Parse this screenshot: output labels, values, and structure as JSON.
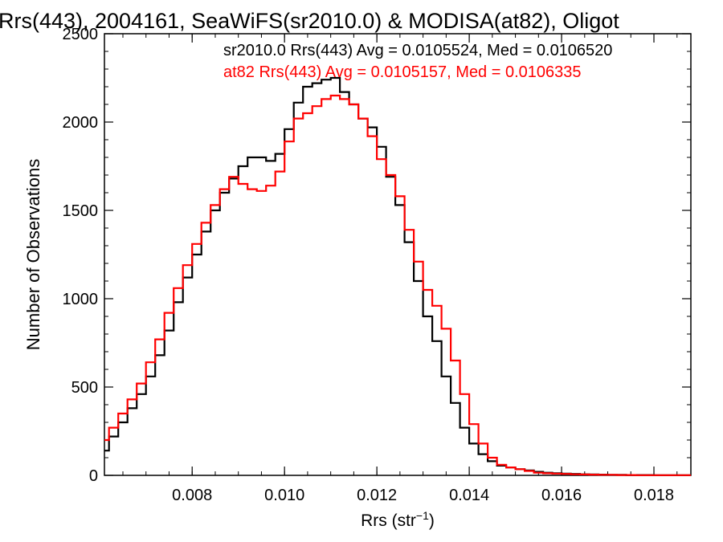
{
  "chart_data": {
    "type": "line",
    "title": "Rrs(443), 2004161, SeaWiFS(sr2010.0) & MODISA(at82), Oligot",
    "xlabel_main": "Rrs (str",
    "xlabel_sup": "−1",
    "xlabel_tail": ")",
    "ylabel": "Number of Observations",
    "xlim": [
      0.0061,
      0.0188
    ],
    "ylim": [
      0,
      2500
    ],
    "grid": false,
    "x_ticks": [
      0.008,
      0.01,
      0.012,
      0.014,
      0.016,
      0.018
    ],
    "x_tick_labels": [
      "0.008",
      "0.010",
      "0.012",
      "0.014",
      "0.016",
      "0.018"
    ],
    "y_ticks": [
      0,
      500,
      1000,
      1500,
      2000,
      2500
    ],
    "y_tick_labels": [
      "0",
      "500",
      "1000",
      "1500",
      "2000",
      "2500"
    ],
    "annotations": [
      {
        "text": "sr2010.0 Rrs(443) Avg = 0.0105524, Med = 0.0106520",
        "color": "#000000"
      },
      {
        "text": "at82 Rrs(443) Avg = 0.0105157, Med = 0.0106335",
        "color": "#ff0000"
      }
    ],
    "series": [
      {
        "color": "#000000",
        "x": [
          0.0061,
          0.0063,
          0.0065,
          0.0067,
          0.0069,
          0.0071,
          0.0073,
          0.0075,
          0.0077,
          0.0079,
          0.0081,
          0.0083,
          0.0085,
          0.0087,
          0.0089,
          0.0091,
          0.0093,
          0.0095,
          0.0097,
          0.0099,
          0.0101,
          0.0103,
          0.0105,
          0.0107,
          0.0109,
          0.0111,
          0.0113,
          0.0115,
          0.0117,
          0.0119,
          0.0121,
          0.0123,
          0.0125,
          0.0127,
          0.0129,
          0.0131,
          0.0133,
          0.0135,
          0.0137,
          0.0139,
          0.0141,
          0.0143,
          0.0145,
          0.0147,
          0.0149,
          0.0151,
          0.0153,
          0.0155,
          0.0157,
          0.0159,
          0.0161,
          0.0163,
          0.0165,
          0.0167,
          0.0169,
          0.0171,
          0.0173,
          0.0175,
          0.0177,
          0.0179,
          0.0181,
          0.0183,
          0.0185,
          0.0187
        ],
        "values": [
          140,
          220,
          300,
          380,
          460,
          560,
          680,
          820,
          980,
          1120,
          1250,
          1380,
          1500,
          1600,
          1680,
          1750,
          1800,
          1800,
          1780,
          1820,
          1960,
          2110,
          2200,
          2220,
          2240,
          2250,
          2170,
          2100,
          2020,
          1970,
          1860,
          1690,
          1530,
          1320,
          1100,
          900,
          760,
          560,
          410,
          270,
          180,
          120,
          80,
          55,
          45,
          35,
          28,
          20,
          15,
          12,
          10,
          8,
          6,
          5,
          4,
          3,
          3,
          2,
          2,
          2,
          1,
          1,
          1,
          1
        ]
      },
      {
        "color": "#ff0000",
        "x": [
          0.0061,
          0.0063,
          0.0065,
          0.0067,
          0.0069,
          0.0071,
          0.0073,
          0.0075,
          0.0077,
          0.0079,
          0.0081,
          0.0083,
          0.0085,
          0.0087,
          0.0089,
          0.0091,
          0.0093,
          0.0095,
          0.0097,
          0.0099,
          0.0101,
          0.0103,
          0.0105,
          0.0107,
          0.0109,
          0.0111,
          0.0113,
          0.0115,
          0.0117,
          0.0119,
          0.0121,
          0.0123,
          0.0125,
          0.0127,
          0.0129,
          0.0131,
          0.0133,
          0.0135,
          0.0137,
          0.0139,
          0.0141,
          0.0143,
          0.0145,
          0.0147,
          0.0149,
          0.0151,
          0.0153,
          0.0155,
          0.0157,
          0.0159,
          0.0161,
          0.0163,
          0.0165,
          0.0167,
          0.0169,
          0.0171,
          0.0173,
          0.0175,
          0.0177,
          0.0179,
          0.0181,
          0.0183,
          0.0185,
          0.0187
        ],
        "values": [
          200,
          270,
          350,
          430,
          520,
          640,
          770,
          920,
          1060,
          1190,
          1310,
          1430,
          1530,
          1620,
          1690,
          1650,
          1620,
          1610,
          1640,
          1720,
          1890,
          2020,
          2050,
          2090,
          2130,
          2150,
          2130,
          2100,
          2020,
          1920,
          1790,
          1700,
          1580,
          1390,
          1210,
          1050,
          960,
          830,
          650,
          460,
          290,
          180,
          100,
          60,
          45,
          35,
          25,
          15,
          12,
          10,
          8,
          6,
          5,
          4,
          3,
          3,
          2,
          2,
          1,
          1,
          1,
          1,
          1,
          1
        ]
      }
    ]
  }
}
